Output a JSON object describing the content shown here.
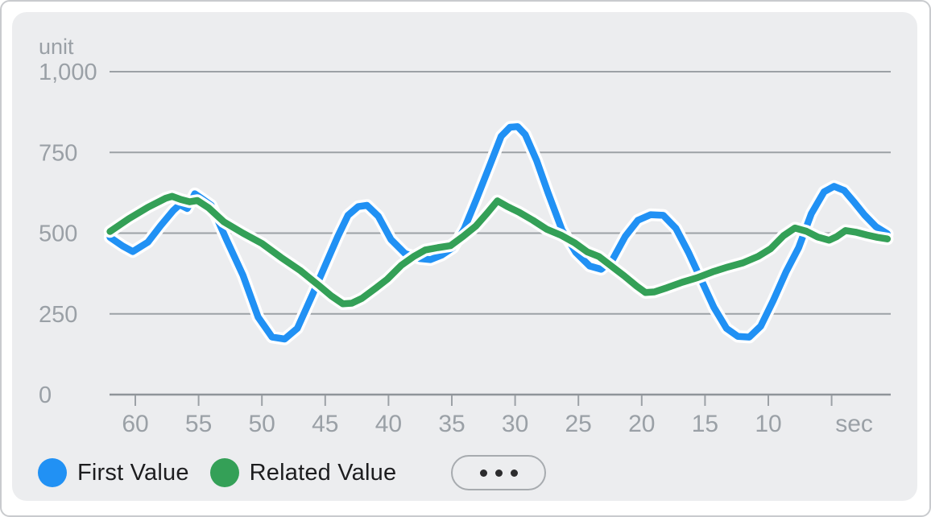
{
  "colors": {
    "card_background": "#ECEDEF",
    "page_background": "#FFFFFF",
    "grid_line": "#9ca1a6",
    "axis_line": "#8f9499",
    "tick_label": "#9aa0a6",
    "legend_text": "#1d1d1f",
    "line_halo": "#FFFFFF",
    "first_value": "#2191F4",
    "related_value": "#34A057"
  },
  "legend": {
    "items": [
      {
        "label": "First Value",
        "color": "#2191F4",
        "icon": "blue-dot-icon"
      },
      {
        "label": "Related Value",
        "color": "#34A057",
        "icon": "green-dot-icon"
      }
    ],
    "more_button": {
      "icon": "ellipsis-icon",
      "dots": 3
    }
  },
  "chart_data": {
    "type": "line",
    "title": "",
    "grid": "horizontal",
    "legend_position": "bottom-left",
    "y_axis": {
      "label": "unit",
      "range": [
        0,
        1000
      ],
      "ticks": [
        {
          "value": 0,
          "label": "0"
        },
        {
          "value": 250,
          "label": "250"
        },
        {
          "value": 500,
          "label": "500"
        },
        {
          "value": 750,
          "label": "750"
        },
        {
          "value": 1000,
          "label": "1,000"
        }
      ]
    },
    "x_axis": {
      "label": "sec",
      "unit": "seconds (descending, most recent at right)",
      "range": [
        62.5,
        0.5
      ],
      "ticks": [
        {
          "value": 60,
          "label": "60"
        },
        {
          "value": 55,
          "label": "55"
        },
        {
          "value": 50,
          "label": "50"
        },
        {
          "value": 45,
          "label": "45"
        },
        {
          "value": 40,
          "label": "40"
        },
        {
          "value": 35,
          "label": "35"
        },
        {
          "value": 30,
          "label": "30"
        },
        {
          "value": 25,
          "label": "25"
        },
        {
          "value": 20,
          "label": "20"
        },
        {
          "value": 15,
          "label": "15"
        },
        {
          "value": 10,
          "label": "10"
        },
        {
          "value": 5,
          "label": "sec",
          "label_dx": 28
        }
      ]
    },
    "series": [
      {
        "name": "First Value",
        "color": "#2191F4",
        "points": [
          [
            62,
            487
          ],
          [
            61,
            460
          ],
          [
            60.2,
            443
          ],
          [
            59,
            472
          ],
          [
            58,
            523
          ],
          [
            57,
            570
          ],
          [
            56.5,
            588
          ],
          [
            55.9,
            576
          ],
          [
            55.3,
            622
          ],
          [
            54.6,
            603
          ],
          [
            54,
            586
          ],
          [
            52.8,
            480
          ],
          [
            51.5,
            370
          ],
          [
            50.3,
            240
          ],
          [
            49.2,
            178
          ],
          [
            48.2,
            172
          ],
          [
            47.2,
            205
          ],
          [
            46,
            310
          ],
          [
            45,
            400
          ],
          [
            44,
            490
          ],
          [
            43.2,
            555
          ],
          [
            42.4,
            582
          ],
          [
            41.7,
            586
          ],
          [
            40.8,
            552
          ],
          [
            39.8,
            480
          ],
          [
            38.7,
            437
          ],
          [
            37.5,
            421
          ],
          [
            36.7,
            418
          ],
          [
            35.8,
            432
          ],
          [
            34.9,
            455
          ],
          [
            34,
            515
          ],
          [
            33,
            610
          ],
          [
            32,
            710
          ],
          [
            31.1,
            800
          ],
          [
            30.4,
            828
          ],
          [
            29.8,
            830
          ],
          [
            29.2,
            805
          ],
          [
            28.3,
            725
          ],
          [
            27.4,
            625
          ],
          [
            26.3,
            510
          ],
          [
            25.2,
            440
          ],
          [
            24.1,
            398
          ],
          [
            23.2,
            388
          ],
          [
            22.3,
            418
          ],
          [
            21.3,
            490
          ],
          [
            20.3,
            540
          ],
          [
            19.3,
            557
          ],
          [
            18.3,
            555
          ],
          [
            17.3,
            515
          ],
          [
            16.3,
            440
          ],
          [
            15.3,
            355
          ],
          [
            14.3,
            270
          ],
          [
            13.3,
            205
          ],
          [
            12.4,
            180
          ],
          [
            11.5,
            178
          ],
          [
            10.6,
            212
          ],
          [
            9.6,
            292
          ],
          [
            8.6,
            380
          ],
          [
            7.6,
            455
          ],
          [
            6.6,
            560
          ],
          [
            5.6,
            628
          ],
          [
            4.8,
            645
          ],
          [
            4,
            632
          ],
          [
            3.2,
            595
          ],
          [
            2.4,
            556
          ],
          [
            1.5,
            520
          ],
          [
            0.6,
            498
          ]
        ]
      },
      {
        "name": "Related Value",
        "color": "#34A057",
        "points": [
          [
            62,
            505
          ],
          [
            60.5,
            545
          ],
          [
            59,
            580
          ],
          [
            57.6,
            608
          ],
          [
            57.1,
            614
          ],
          [
            56.4,
            604
          ],
          [
            55.7,
            597
          ],
          [
            55.1,
            601
          ],
          [
            54.2,
            578
          ],
          [
            53,
            535
          ],
          [
            51.5,
            500
          ],
          [
            50,
            468
          ],
          [
            48.5,
            425
          ],
          [
            47,
            385
          ],
          [
            45.5,
            338
          ],
          [
            44.5,
            305
          ],
          [
            43.6,
            281
          ],
          [
            42.9,
            283
          ],
          [
            42.1,
            298
          ],
          [
            41,
            330
          ],
          [
            40.1,
            357
          ],
          [
            39,
            400
          ],
          [
            38,
            428
          ],
          [
            37.1,
            448
          ],
          [
            36.1,
            455
          ],
          [
            35.1,
            461
          ],
          [
            34.1,
            490
          ],
          [
            33.1,
            522
          ],
          [
            32.2,
            562
          ],
          [
            31.4,
            600
          ],
          [
            30.6,
            582
          ],
          [
            29.7,
            565
          ],
          [
            28.6,
            540
          ],
          [
            27.5,
            512
          ],
          [
            26.4,
            494
          ],
          [
            25.3,
            470
          ],
          [
            24.3,
            442
          ],
          [
            23.4,
            428
          ],
          [
            22.4,
            398
          ],
          [
            21.4,
            368
          ],
          [
            20.4,
            336
          ],
          [
            19.7,
            316
          ],
          [
            19,
            318
          ],
          [
            18,
            331
          ],
          [
            16.8,
            348
          ],
          [
            15.6,
            362
          ],
          [
            14.4,
            380
          ],
          [
            13.2,
            395
          ],
          [
            12,
            408
          ],
          [
            10.8,
            428
          ],
          [
            9.8,
            452
          ],
          [
            8.8,
            492
          ],
          [
            7.9,
            516
          ],
          [
            7,
            506
          ],
          [
            6.1,
            488
          ],
          [
            5.2,
            478
          ],
          [
            4.6,
            489
          ],
          [
            3.9,
            508
          ],
          [
            3.1,
            503
          ],
          [
            2.2,
            494
          ],
          [
            1.4,
            487
          ],
          [
            0.6,
            482
          ]
        ]
      }
    ]
  }
}
